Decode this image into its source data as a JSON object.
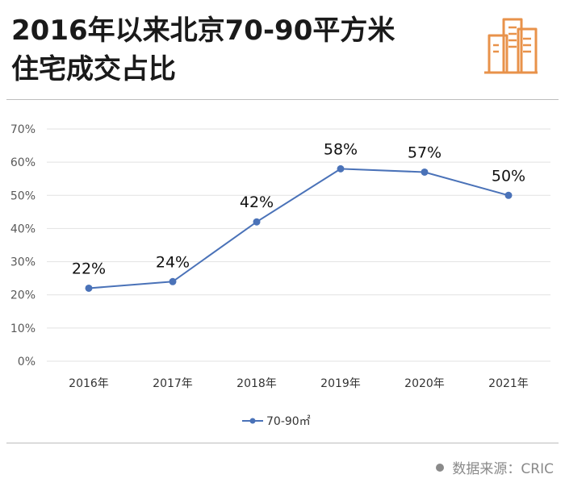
{
  "header": {
    "title_line1": "2016年以来北京70-90平方米",
    "title_line2": "住宅成交占比"
  },
  "footer": {
    "source_text": "数据来源：CRIC"
  },
  "colors": {
    "series": "#4a72b8",
    "grid": "#e2e2e2",
    "axis_text": "#595959",
    "logo": "#e8924a"
  },
  "icons": {
    "logo": "buildings-icon",
    "source_bullet": "dot-icon"
  },
  "chart_data": {
    "type": "line",
    "categories": [
      "2016年",
      "2017年",
      "2018年",
      "2019年",
      "2020年",
      "2021年"
    ],
    "series": [
      {
        "name": "70-90㎡",
        "values": [
          22,
          24,
          42,
          58,
          57,
          50
        ],
        "labels": [
          "22%",
          "24%",
          "42%",
          "58%",
          "57%",
          "50%"
        ]
      }
    ],
    "ylim": [
      0,
      70
    ],
    "yticks": [
      0,
      10,
      20,
      30,
      40,
      50,
      60,
      70
    ],
    "ytick_labels": [
      "0%",
      "10%",
      "20%",
      "30%",
      "40%",
      "50%",
      "60%",
      "70%"
    ],
    "grid": true,
    "legend": "bottom-center"
  }
}
